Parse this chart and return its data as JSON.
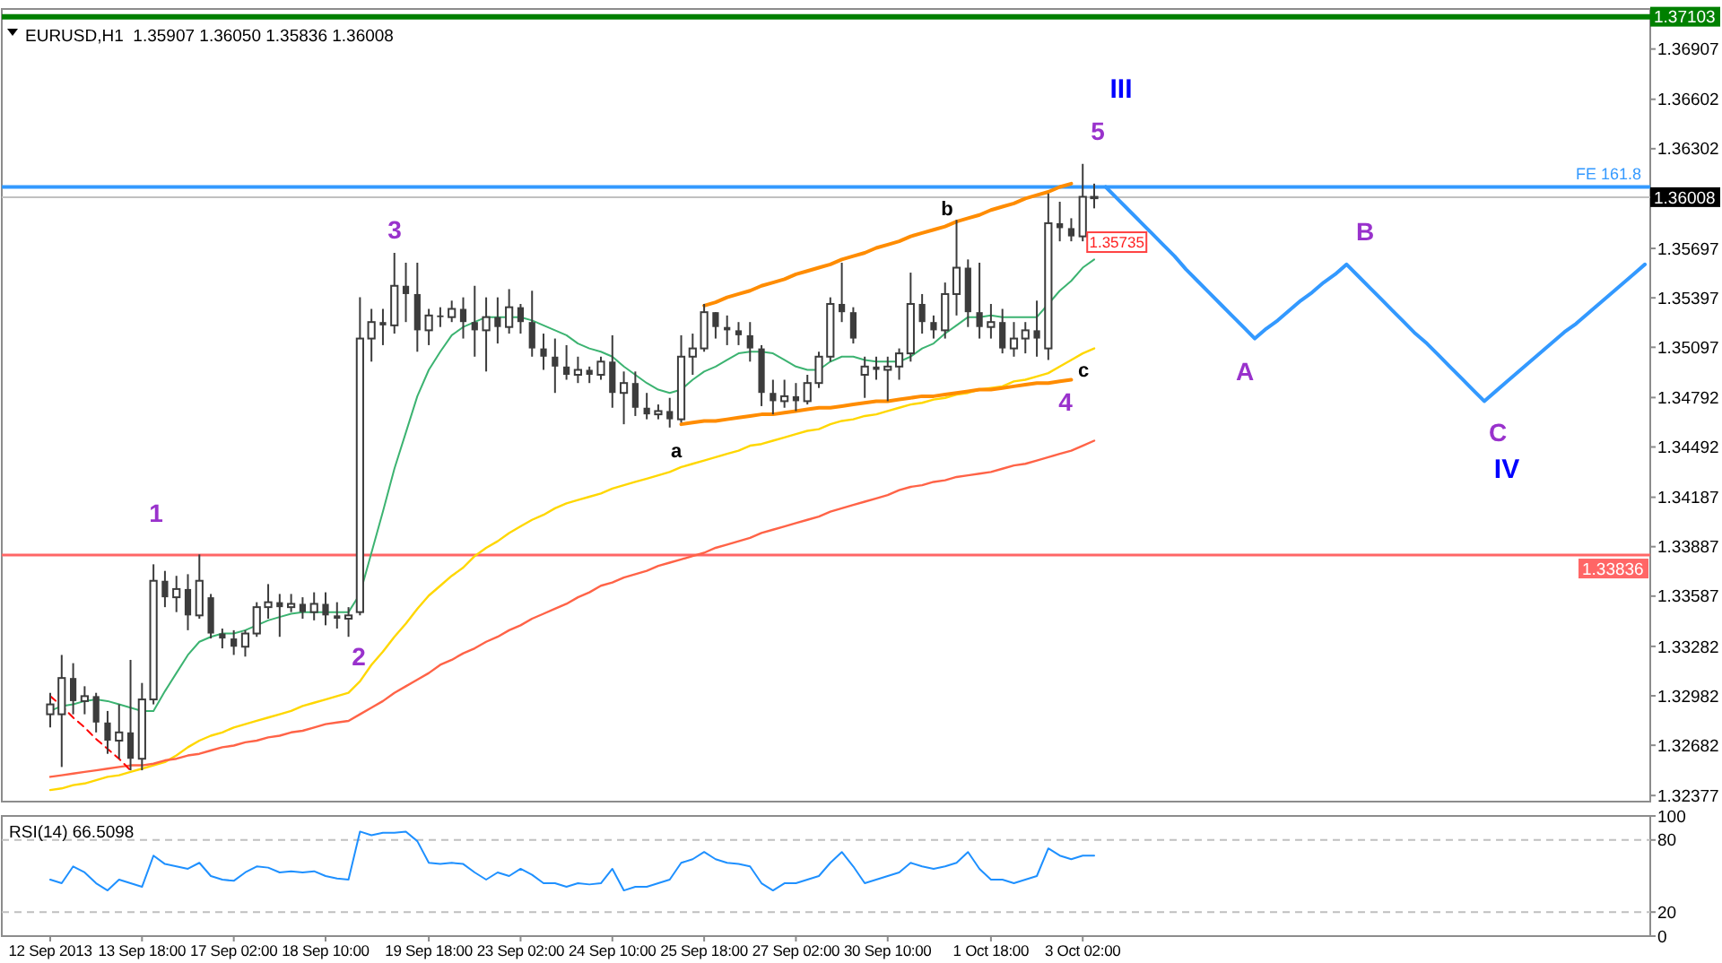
{
  "chart_data": [
    {
      "type": "candlestick",
      "title": "EURUSD,H1  1.35907 1.36050 1.35836 1.36008",
      "color": "#3c3c3c",
      "categories": [
        null,
        null,
        null,
        null,
        null,
        null,
        null,
        null,
        null,
        null,
        null,
        null,
        null,
        null,
        null,
        null,
        null,
        null,
        null,
        null,
        null,
        null,
        null,
        null,
        null,
        null,
        null,
        null,
        null,
        null,
        null,
        null,
        null,
        null,
        null,
        null,
        null,
        null,
        null,
        null,
        null,
        null,
        null,
        null,
        null,
        null,
        null,
        null,
        null,
        null,
        null,
        null,
        null,
        null,
        null,
        null,
        null,
        null,
        null,
        null,
        null,
        null,
        null,
        null,
        null,
        null,
        null,
        null,
        null,
        null,
        null,
        null,
        null,
        null,
        null,
        null,
        null,
        null,
        null,
        null,
        null,
        null,
        null,
        null,
        null,
        null,
        null,
        null,
        null,
        null,
        null,
        null,
        null,
        null,
        null,
        null,
        null,
        null,
        null,
        null,
        null,
        null,
        null,
        null,
        null,
        null,
        null,
        null,
        null,
        null,
        null,
        null,
        null,
        null,
        null,
        null,
        null,
        null,
        null,
        null,
        null,
        null,
        null,
        null,
        null,
        null,
        null,
        null,
        null,
        null,
        null,
        null,
        null,
        null,
        null,
        null,
        null,
        null,
        null,
        null
      ],
      "ohlc": [
        [
          1.3287,
          1.33,
          1.3279,
          1.3293
        ],
        [
          1.3287,
          1.3323,
          1.3255,
          1.3309
        ],
        [
          1.3309,
          1.3318,
          1.3287,
          1.3295
        ],
        [
          1.3295,
          1.3304,
          1.3287,
          1.3298
        ],
        [
          1.3298,
          1.33,
          1.3276,
          1.3282
        ],
        [
          1.3282,
          1.3289,
          1.3263,
          1.3271
        ],
        [
          1.3271,
          1.3293,
          1.326,
          1.3276
        ],
        [
          1.3276,
          1.332,
          1.3253,
          1.326
        ],
        [
          1.326,
          1.3306,
          1.3253,
          1.3296
        ],
        [
          1.3296,
          1.3378,
          1.3293,
          1.3368
        ],
        [
          1.3368,
          1.3374,
          1.3352,
          1.3358
        ],
        [
          1.3358,
          1.3371,
          1.3349,
          1.3363
        ],
        [
          1.3363,
          1.3372,
          1.3338,
          1.3347
        ],
        [
          1.3347,
          1.3384,
          1.3345,
          1.3368
        ],
        [
          1.3358,
          1.336,
          1.3333,
          1.3336
        ],
        [
          1.3336,
          1.3339,
          1.3327,
          1.3333
        ],
        [
          1.3333,
          1.3338,
          1.3323,
          1.3328
        ],
        [
          1.3328,
          1.3338,
          1.3322,
          1.3336
        ],
        [
          1.3336,
          1.3355,
          1.3334,
          1.3352
        ],
        [
          1.3352,
          1.3366,
          1.3345,
          1.3355
        ],
        [
          1.3355,
          1.336,
          1.3334,
          1.3352
        ],
        [
          1.3352,
          1.336,
          1.3349,
          1.3354
        ],
        [
          1.3354,
          1.3358,
          1.3345,
          1.3349
        ],
        [
          1.3349,
          1.3361,
          1.3344,
          1.3354
        ],
        [
          1.3354,
          1.3361,
          1.3341,
          1.3347
        ],
        [
          1.3347,
          1.3355,
          1.3339,
          1.3345
        ],
        [
          1.3345,
          1.3352,
          1.3334,
          1.3347
        ],
        [
          1.3349,
          1.354,
          1.3347,
          1.3515
        ],
        [
          1.3515,
          1.3533,
          1.3501,
          1.3525
        ],
        [
          1.3525,
          1.3533,
          1.3511,
          1.3523
        ],
        [
          1.3523,
          1.3567,
          1.3518,
          1.3547
        ],
        [
          1.3547,
          1.3561,
          1.3525,
          1.3542
        ],
        [
          1.3542,
          1.3561,
          1.3507,
          1.352
        ],
        [
          1.352,
          1.3533,
          1.3511,
          1.3529
        ],
        [
          1.3529,
          1.3534,
          1.3522,
          1.3528
        ],
        [
          1.3528,
          1.3538,
          1.3525,
          1.3533
        ],
        [
          1.3533,
          1.354,
          1.3515,
          1.3525
        ],
        [
          1.3525,
          1.3547,
          1.3504,
          1.352
        ],
        [
          1.352,
          1.354,
          1.3495,
          1.3528
        ],
        [
          1.3528,
          1.354,
          1.3512,
          1.3522
        ],
        [
          1.3522,
          1.3545,
          1.3518,
          1.3534
        ],
        [
          1.3534,
          1.3536,
          1.3518,
          1.3525
        ],
        [
          1.3525,
          1.3544,
          1.3504,
          1.3509
        ],
        [
          1.3509,
          1.3518,
          1.3496,
          1.3504
        ],
        [
          1.3504,
          1.3515,
          1.3482,
          1.3498
        ],
        [
          1.3498,
          1.3511,
          1.349,
          1.3493
        ],
        [
          1.3493,
          1.3504,
          1.3488,
          1.3496
        ],
        [
          1.3496,
          1.3498,
          1.3488,
          1.3493
        ],
        [
          1.3493,
          1.3504,
          1.349,
          1.3501
        ],
        [
          1.3501,
          1.3517,
          1.3473,
          1.3482
        ],
        [
          1.3482,
          1.3495,
          1.3463,
          1.3488
        ],
        [
          1.3488,
          1.3495,
          1.3468,
          1.3473
        ],
        [
          1.3473,
          1.3482,
          1.3466,
          1.3469
        ],
        [
          1.3469,
          1.3475,
          1.3466,
          1.3471
        ],
        [
          1.3471,
          1.3479,
          1.3461,
          1.3466
        ],
        [
          1.3466,
          1.3517,
          1.3464,
          1.3504
        ],
        [
          1.3504,
          1.3518,
          1.3493,
          1.3509
        ],
        [
          1.3509,
          1.3536,
          1.3507,
          1.3531
        ],
        [
          1.3531,
          1.3531,
          1.3515,
          1.3522
        ],
        [
          1.3522,
          1.3529,
          1.3511,
          1.352
        ],
        [
          1.352,
          1.3525,
          1.3511,
          1.3517
        ],
        [
          1.3517,
          1.3525,
          1.3501,
          1.3509
        ],
        [
          1.3509,
          1.3511,
          1.3474,
          1.3482
        ],
        [
          1.3482,
          1.349,
          1.3469,
          1.3477
        ],
        [
          1.3477,
          1.349,
          1.3473,
          1.348
        ],
        [
          1.348,
          1.3488,
          1.3471,
          1.3477
        ],
        [
          1.3477,
          1.3493,
          1.3475,
          1.3488
        ],
        [
          1.3488,
          1.3507,
          1.3485,
          1.3504
        ],
        [
          1.3504,
          1.354,
          1.3501,
          1.3536
        ],
        [
          1.3536,
          1.3561,
          1.3525,
          1.3531
        ],
        [
          1.3531,
          1.3534,
          1.3512,
          1.3515
        ],
        [
          1.3493,
          1.3504,
          1.3479,
          1.3498
        ],
        [
          1.3498,
          1.3504,
          1.349,
          1.3496
        ],
        [
          1.3496,
          1.3504,
          1.3477,
          1.3498
        ],
        [
          1.3498,
          1.3509,
          1.349,
          1.3506
        ],
        [
          1.3506,
          1.3555,
          1.3501,
          1.3536
        ],
        [
          1.3536,
          1.3542,
          1.3518,
          1.3525
        ],
        [
          1.3525,
          1.3529,
          1.3515,
          1.352
        ],
        [
          1.352,
          1.3549,
          1.3515,
          1.3542
        ],
        [
          1.3542,
          1.3587,
          1.3529,
          1.3558
        ],
        [
          1.3558,
          1.3563,
          1.3522,
          1.3531
        ],
        [
          1.3531,
          1.3561,
          1.3515,
          1.3522
        ],
        [
          1.3522,
          1.3536,
          1.3515,
          1.3525
        ],
        [
          1.3525,
          1.3533,
          1.3506,
          1.3509
        ],
        [
          1.3509,
          1.3525,
          1.3504,
          1.3515
        ],
        [
          1.3515,
          1.3525,
          1.3506,
          1.352
        ],
        [
          1.352,
          1.3538,
          1.3504,
          1.3515
        ],
        [
          1.3509,
          1.3603,
          1.3502,
          1.3585
        ],
        [
          1.3585,
          1.3598,
          1.3574,
          1.3582
        ],
        [
          1.3582,
          1.3588,
          1.3574,
          1.3577
        ],
        [
          1.3577,
          1.3621,
          1.3574,
          1.3601
        ],
        [
          1.3601,
          1.3609,
          1.3594,
          1.3601
        ],
        null,
        null,
        null,
        null,
        null,
        null,
        null,
        null,
        null,
        null,
        null,
        null,
        null,
        null,
        null,
        null,
        null,
        null,
        null,
        null,
        null,
        null,
        null,
        null,
        null,
        null,
        null,
        null,
        null,
        null,
        null,
        null,
        null,
        null,
        null,
        null,
        null,
        null,
        null,
        null,
        null,
        null,
        null,
        null,
        null,
        null,
        null,
        null
      ],
      "series": [
        {
          "type": "line",
          "color": "#3cb371",
          "values": [
            1.3289,
            1.3292,
            1.3293,
            1.3295,
            1.3296,
            1.3295,
            1.3293,
            1.3291,
            1.3289,
            1.3289,
            1.3301,
            1.3312,
            1.3323,
            1.3331,
            1.3334,
            1.3336,
            1.3336,
            1.3338,
            1.3341,
            1.3344,
            1.3346,
            1.3348,
            1.3349,
            1.3349,
            1.3349,
            1.3349,
            1.3349,
            1.336,
            1.3385,
            1.341,
            1.3436,
            1.3458,
            1.348,
            1.3496,
            1.3507,
            1.3517,
            1.3522,
            1.3525,
            1.3528,
            1.3528,
            1.3528,
            1.3528,
            1.3526,
            1.3523,
            1.352,
            1.3517,
            1.3512,
            1.3509,
            1.3507,
            1.3504,
            1.3498,
            1.3493,
            1.3488,
            1.3484,
            1.3482,
            1.3484,
            1.349,
            1.3495,
            1.3498,
            1.3502,
            1.3506,
            1.3507,
            1.3507,
            1.3506,
            1.3502,
            1.3498,
            1.3496,
            1.3496,
            1.3501,
            1.3504,
            1.3504,
            1.3502,
            1.3501,
            1.3501,
            1.3501,
            1.3504,
            1.3509,
            1.3512,
            1.3518,
            1.3523,
            1.3528,
            1.3528,
            1.3529,
            1.3528,
            1.3528,
            1.3528,
            1.3528,
            1.3536,
            1.3544,
            1.355,
            1.3558,
            1.3563,
            null,
            null,
            null,
            null,
            null,
            null,
            null,
            null,
            null,
            null,
            null,
            null,
            null,
            null,
            null,
            null,
            null,
            null,
            null,
            null,
            null,
            null,
            null,
            null,
            null,
            null,
            null,
            null,
            null,
            null,
            null,
            null,
            null,
            null,
            null,
            null,
            null,
            null,
            null,
            null,
            null,
            null,
            null,
            null,
            null,
            null,
            null,
            null
          ]
        },
        {
          "type": "line",
          "color": "#ffd700",
          "values": [
            1.3241,
            1.3242,
            1.3244,
            1.3245,
            1.3247,
            1.3249,
            1.325,
            1.3252,
            1.3254,
            1.3256,
            1.3258,
            1.3262,
            1.3267,
            1.3271,
            1.3274,
            1.3276,
            1.3279,
            1.3281,
            1.3283,
            1.3285,
            1.3287,
            1.3289,
            1.3292,
            1.3294,
            1.3296,
            1.3298,
            1.33,
            1.3307,
            1.3317,
            1.3325,
            1.3334,
            1.3342,
            1.3351,
            1.3359,
            1.3365,
            1.3371,
            1.3376,
            1.3383,
            1.3388,
            1.3392,
            1.3397,
            1.3401,
            1.3405,
            1.3408,
            1.3412,
            1.3415,
            1.3417,
            1.3419,
            1.3421,
            1.3424,
            1.3426,
            1.3428,
            1.343,
            1.3432,
            1.3434,
            1.3437,
            1.3439,
            1.3441,
            1.3443,
            1.3445,
            1.3447,
            1.345,
            1.3451,
            1.3453,
            1.3455,
            1.3457,
            1.3459,
            1.346,
            1.3463,
            1.3465,
            1.3466,
            1.3468,
            1.3469,
            1.3471,
            1.3473,
            1.3475,
            1.3476,
            1.3478,
            1.3479,
            1.3481,
            1.3482,
            1.3484,
            1.3485,
            1.3486,
            1.3489,
            1.349,
            1.3492,
            1.3494,
            1.3498,
            1.3502,
            1.3506,
            1.3509,
            null,
            null,
            null,
            null,
            null,
            null,
            null,
            null,
            null,
            null,
            null,
            null,
            null,
            null,
            null,
            null,
            null,
            null,
            null,
            null,
            null,
            null,
            null,
            null,
            null,
            null,
            null,
            null,
            null,
            null,
            null,
            null,
            null,
            null,
            null,
            null,
            null,
            null,
            null,
            null,
            null,
            null,
            null,
            null,
            null,
            null,
            null,
            null
          ]
        },
        {
          "type": "line",
          "color": "#ff6347",
          "values": [
            1.3249,
            1.325,
            1.3251,
            1.3252,
            1.3253,
            1.3254,
            1.3255,
            1.3256,
            1.3256,
            1.3257,
            1.3259,
            1.326,
            1.3262,
            1.3263,
            1.3265,
            1.3267,
            1.3268,
            1.327,
            1.3271,
            1.3273,
            1.3274,
            1.3276,
            1.3277,
            1.3279,
            1.3281,
            1.3282,
            1.3283,
            1.3287,
            1.3291,
            1.3295,
            1.33,
            1.3304,
            1.3308,
            1.3312,
            1.3317,
            1.332,
            1.3324,
            1.3327,
            1.3331,
            1.3334,
            1.3338,
            1.3341,
            1.3345,
            1.3348,
            1.3351,
            1.3354,
            1.3358,
            1.3361,
            1.3365,
            1.3367,
            1.337,
            1.3372,
            1.3374,
            1.3377,
            1.3379,
            1.3381,
            1.3383,
            1.3385,
            1.3388,
            1.339,
            1.3392,
            1.3394,
            1.3397,
            1.3399,
            1.3401,
            1.3403,
            1.3405,
            1.3407,
            1.341,
            1.3412,
            1.3414,
            1.3416,
            1.3418,
            1.342,
            1.3423,
            1.3425,
            1.3426,
            1.3428,
            1.3429,
            1.3431,
            1.3432,
            1.3433,
            1.3434,
            1.3436,
            1.3438,
            1.3439,
            1.3441,
            1.3443,
            1.3445,
            1.3447,
            1.345,
            1.3453,
            null,
            null,
            null,
            null,
            null,
            null,
            null,
            null,
            null,
            null,
            null,
            null,
            null,
            null,
            null,
            null,
            null,
            null,
            null,
            null,
            null,
            null,
            null,
            null,
            null,
            null,
            null,
            null,
            null,
            null,
            null,
            null,
            null,
            null,
            null,
            null,
            null,
            null,
            null,
            null,
            null,
            null,
            null,
            null,
            null,
            null,
            null,
            null
          ]
        },
        {
          "type": "line",
          "color": "#ff8c00",
          "values": [
            null,
            null,
            null,
            null,
            null,
            null,
            null,
            null,
            null,
            null,
            null,
            null,
            null,
            null,
            null,
            null,
            null,
            null,
            null,
            null,
            null,
            null,
            null,
            null,
            null,
            null,
            null,
            null,
            null,
            null,
            null,
            null,
            null,
            null,
            null,
            null,
            null,
            null,
            null,
            null,
            null,
            null,
            null,
            null,
            null,
            null,
            null,
            null,
            null,
            null,
            null,
            null,
            null,
            null,
            null,
            null,
            null,
            1.3535,
            1.3537,
            1.354,
            1.3542,
            1.3544,
            1.3547,
            1.3549,
            1.3551,
            1.3554,
            1.3556,
            1.3558,
            1.356,
            1.3563,
            1.3565,
            1.3567,
            1.357,
            1.3572,
            1.3574,
            1.3577,
            1.3579,
            1.3581,
            1.3583,
            1.3586,
            1.3588,
            1.359,
            1.3593,
            1.3595,
            1.3597,
            1.36,
            1.3602,
            1.3604,
            1.3607,
            1.3609,
            null,
            null,
            null,
            null,
            null,
            null,
            null,
            null,
            null,
            null,
            null,
            null,
            null,
            null,
            null,
            null,
            null,
            null,
            null,
            null,
            null,
            null,
            null,
            null,
            null,
            null,
            null,
            null,
            null,
            null,
            null,
            null,
            null,
            null,
            null,
            null,
            null,
            null,
            null,
            null,
            null,
            null,
            null,
            null,
            null,
            null,
            null,
            null,
            null,
            null
          ]
        },
        {
          "type": "line",
          "color": "#ff8c00",
          "values": [
            null,
            null,
            null,
            null,
            null,
            null,
            null,
            null,
            null,
            null,
            null,
            null,
            null,
            null,
            null,
            null,
            null,
            null,
            null,
            null,
            null,
            null,
            null,
            null,
            null,
            null,
            null,
            null,
            null,
            null,
            null,
            null,
            null,
            null,
            null,
            null,
            null,
            null,
            null,
            null,
            null,
            null,
            null,
            null,
            null,
            null,
            null,
            null,
            null,
            null,
            null,
            null,
            null,
            null,
            null,
            1.3463,
            1.3464,
            1.3465,
            1.3465,
            1.3466,
            1.3467,
            1.3468,
            1.3469,
            1.3469,
            1.347,
            1.3471,
            1.3472,
            1.3473,
            1.3473,
            1.3474,
            1.3475,
            1.3476,
            1.3477,
            1.3477,
            1.3478,
            1.3479,
            1.348,
            1.348,
            1.3481,
            1.3482,
            1.3483,
            1.3484,
            1.3484,
            1.3485,
            1.3486,
            1.3487,
            1.3488,
            1.3488,
            1.3489,
            1.349,
            null,
            null,
            null,
            null,
            null,
            null,
            null,
            null,
            null,
            null,
            null,
            null,
            null,
            null,
            null,
            null,
            null,
            null,
            null,
            null,
            null,
            null,
            null,
            null,
            null,
            null,
            null,
            null,
            null,
            null,
            null,
            null,
            null,
            null,
            null,
            null,
            null,
            null,
            null,
            null,
            null,
            null,
            null,
            null,
            null,
            null,
            null,
            null,
            null,
            null
          ]
        },
        {
          "type": "line",
          "color": "#ff0000",
          "line_style": "dashed",
          "values": [
            1.3298,
            1.3292,
            1.3285,
            1.3279,
            1.3272,
            1.3266,
            1.326,
            1.3253,
            null,
            null,
            null,
            null,
            null,
            null,
            null,
            null,
            null,
            null,
            null,
            null,
            null,
            null,
            null,
            null,
            null,
            null,
            null,
            null,
            null,
            null,
            null,
            null,
            null,
            null,
            null,
            null,
            null,
            null,
            null,
            null,
            null,
            null,
            null,
            null,
            null,
            null,
            null,
            null,
            null,
            null,
            null,
            null,
            null,
            null,
            null,
            null,
            null,
            null,
            null,
            null,
            null,
            null,
            null,
            null,
            null,
            null,
            null,
            null,
            null,
            null,
            null,
            null,
            null,
            null,
            null,
            null,
            null,
            null,
            null,
            null,
            null,
            null,
            null,
            null,
            null,
            null,
            null,
            null,
            null,
            null,
            null,
            null,
            null,
            null,
            null,
            null,
            null,
            null,
            null,
            null,
            null,
            null,
            null,
            null,
            null,
            null,
            null,
            null,
            null,
            null,
            null,
            null,
            null,
            null,
            null,
            null,
            null,
            null,
            null,
            null,
            null,
            null,
            null,
            null,
            null,
            null,
            null,
            null,
            null,
            null,
            null,
            null,
            null,
            null,
            null,
            null,
            null,
            null,
            null,
            null
          ]
        },
        {
          "type": "line",
          "color": "#3399ff",
          "values": [
            null,
            null,
            null,
            null,
            null,
            null,
            null,
            null,
            null,
            null,
            null,
            null,
            null,
            null,
            null,
            null,
            null,
            null,
            null,
            null,
            null,
            null,
            null,
            null,
            null,
            null,
            null,
            null,
            null,
            null,
            null,
            null,
            null,
            null,
            null,
            null,
            null,
            null,
            null,
            null,
            null,
            null,
            null,
            null,
            null,
            null,
            null,
            null,
            null,
            null,
            null,
            null,
            null,
            null,
            null,
            null,
            null,
            null,
            null,
            null,
            null,
            null,
            null,
            null,
            null,
            null,
            null,
            null,
            null,
            null,
            null,
            null,
            null,
            null,
            null,
            null,
            null,
            null,
            null,
            null,
            null,
            null,
            null,
            null,
            null,
            null,
            null,
            null,
            null,
            null,
            null,
            null,
            1.3607,
            1.36,
            1.3593,
            1.3586,
            1.3579,
            1.3572,
            1.3565,
            1.3557,
            1.355,
            1.3543,
            1.3536,
            1.3529,
            1.3522,
            1.3515,
            1.3521,
            1.3526,
            1.3532,
            1.3538,
            1.3543,
            1.3549,
            1.3554,
            1.356,
            1.3553,
            1.3546,
            1.3539,
            1.3532,
            1.3525,
            1.3518,
            1.3512,
            1.3505,
            1.3498,
            1.3491,
            1.3484,
            1.3477,
            1.3483,
            1.3489,
            1.3495,
            1.3501,
            1.3507,
            1.3513,
            1.3519,
            1.3524,
            1.353,
            1.3536,
            1.3542,
            1.3548,
            1.3554,
            1.356
          ]
        }
      ],
      "ylim": [
        1.3234,
        1.3715
      ],
      "yticks": [
        1.36907,
        1.36602,
        1.36302,
        1.35697,
        1.35397,
        1.35097,
        1.34792,
        1.34492,
        1.34187,
        1.33887,
        1.33587,
        1.33282,
        1.32982,
        1.32682,
        1.32377
      ],
      "ref_lines": [
        {
          "axis": "y",
          "value": 1.37103,
          "label": "1.37103",
          "color": "#008000"
        },
        {
          "axis": "y",
          "value": 1.3607,
          "label": "FE 161.8",
          "color": "#3399ff"
        },
        {
          "axis": "y",
          "value": 1.36008,
          "label": "1.36008",
          "color": "#c0c0c0"
        },
        {
          "axis": "y",
          "value": 1.33836,
          "label": "1.33836",
          "color": "#ff6666"
        }
      ],
      "annotations": [
        "1",
        "2",
        "3",
        "4",
        "5",
        "III",
        "a",
        "b",
        "c",
        "A",
        "B",
        "C",
        "IV",
        {
          "text": "1.35735",
          "y": 1.35735
        }
      ]
    },
    {
      "type": "line",
      "title": "RSI(14) 66.5098",
      "categories": [
        "12 Sep 2013",
        null,
        null,
        null,
        null,
        null,
        null,
        null,
        "13 Sep 18:00",
        null,
        null,
        null,
        null,
        null,
        null,
        null,
        "17 Sep 02:00",
        null,
        null,
        null,
        null,
        null,
        null,
        null,
        "18 Sep 10:00",
        null,
        null,
        null,
        null,
        null,
        null,
        null,
        null,
        "19 Sep 18:00",
        null,
        null,
        null,
        null,
        null,
        null,
        null,
        "23 Sep 02:00",
        null,
        null,
        null,
        null,
        null,
        null,
        null,
        "24 Sep 10:00",
        null,
        null,
        null,
        null,
        null,
        null,
        null,
        "25 Sep 18:00",
        null,
        null,
        null,
        null,
        null,
        null,
        null,
        "27 Sep 02:00",
        null,
        null,
        null,
        null,
        null,
        null,
        null,
        "30 Sep 10:00",
        null,
        null,
        null,
        null,
        null,
        null,
        null,
        null,
        "1 Oct 18:00",
        null,
        null,
        null,
        null,
        null,
        null,
        null,
        "3 Oct 02:00",
        null,
        null,
        null,
        null,
        null,
        null,
        null,
        null,
        null,
        null,
        null,
        null,
        null,
        null,
        null,
        null,
        null,
        null,
        null,
        null,
        null,
        null,
        null,
        null,
        null,
        null,
        null,
        null,
        null,
        null,
        null,
        null,
        null,
        null,
        null,
        null,
        null,
        null,
        null,
        null,
        null,
        null,
        null,
        null,
        null,
        null,
        null,
        null,
        null
      ],
      "series": [
        {
          "color": "#1e90ff",
          "values": [
            47,
            44,
            58,
            53,
            44,
            38,
            47,
            44,
            41,
            67,
            60,
            58,
            56,
            61,
            50,
            47,
            46,
            53,
            58,
            57,
            53,
            54,
            53,
            54,
            50,
            48,
            47,
            87,
            84,
            86,
            86,
            87,
            79,
            61,
            60,
            61,
            60,
            53,
            47,
            53,
            50,
            56,
            51,
            44,
            44,
            41,
            44,
            43,
            44,
            56,
            38,
            41,
            41,
            44,
            47,
            61,
            64,
            70,
            64,
            61,
            60,
            58,
            44,
            38,
            44,
            44,
            47,
            50,
            61,
            70,
            58,
            44,
            47,
            50,
            53,
            61,
            58,
            56,
            58,
            61,
            70,
            56,
            47,
            47,
            44,
            47,
            50,
            73,
            67,
            64,
            67,
            67,
            null,
            null,
            null,
            null,
            null,
            null,
            null,
            null,
            null,
            null,
            null,
            null,
            null,
            null,
            null,
            null,
            null,
            null,
            null,
            null,
            null,
            null,
            null,
            null,
            null,
            null,
            null,
            null,
            null,
            null,
            null,
            null,
            null,
            null,
            null,
            null,
            null,
            null,
            null,
            null,
            null,
            null,
            null,
            null,
            null,
            null,
            null,
            null
          ]
        }
      ],
      "ylim": [
        0,
        100
      ],
      "yticks": [
        100,
        80,
        20,
        0
      ],
      "ref_lines": [
        {
          "axis": "y",
          "value": 80,
          "color": "#c0c0c0",
          "line_style": "dashed"
        },
        {
          "axis": "y",
          "value": 20,
          "color": "#c0c0c0",
          "line_style": "dashed"
        }
      ]
    }
  ]
}
